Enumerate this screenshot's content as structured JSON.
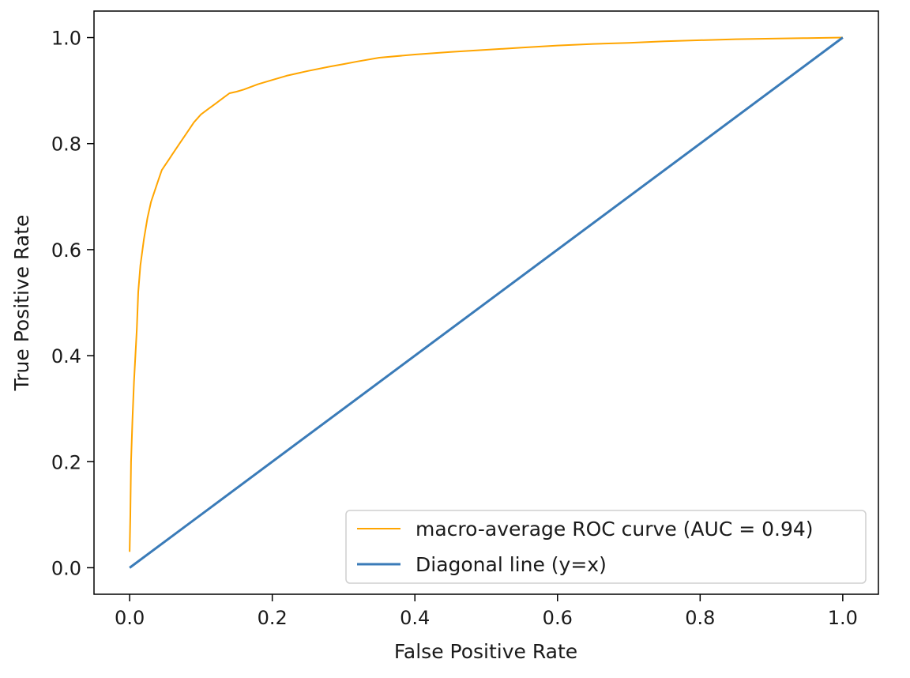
{
  "chart_data": {
    "type": "line",
    "title": "",
    "xlabel": "False Positive Rate",
    "ylabel": "True Positive Rate",
    "xlim": [
      -0.05,
      1.05
    ],
    "ylim": [
      -0.05,
      1.05
    ],
    "xticks": [
      "0.0",
      "0.2",
      "0.4",
      "0.6",
      "0.8",
      "1.0"
    ],
    "yticks": [
      "0.0",
      "0.2",
      "0.4",
      "0.6",
      "0.8",
      "1.0"
    ],
    "grid": false,
    "legend_position": "lower-right",
    "series": [
      {
        "name": "macro-average ROC curve (AUC = 0.94)",
        "color": "#ffa500",
        "x": [
          0.0,
          0.001,
          0.002,
          0.004,
          0.006,
          0.008,
          0.01,
          0.012,
          0.015,
          0.018,
          0.02,
          0.025,
          0.03,
          0.035,
          0.04,
          0.045,
          0.05,
          0.055,
          0.06,
          0.07,
          0.08,
          0.09,
          0.1,
          0.11,
          0.12,
          0.13,
          0.14,
          0.15,
          0.16,
          0.18,
          0.2,
          0.22,
          0.25,
          0.28,
          0.3,
          0.32,
          0.35,
          0.4,
          0.45,
          0.5,
          0.55,
          0.6,
          0.65,
          0.7,
          0.75,
          0.8,
          0.85,
          0.9,
          0.95,
          1.0
        ],
        "y": [
          0.03,
          0.1,
          0.2,
          0.28,
          0.35,
          0.4,
          0.45,
          0.52,
          0.57,
          0.6,
          0.62,
          0.66,
          0.69,
          0.71,
          0.73,
          0.75,
          0.76,
          0.77,
          0.78,
          0.8,
          0.82,
          0.84,
          0.855,
          0.865,
          0.875,
          0.885,
          0.895,
          0.898,
          0.902,
          0.912,
          0.92,
          0.928,
          0.937,
          0.945,
          0.95,
          0.955,
          0.962,
          0.968,
          0.973,
          0.977,
          0.981,
          0.985,
          0.988,
          0.99,
          0.993,
          0.995,
          0.997,
          0.998,
          0.999,
          1.0
        ]
      },
      {
        "name": "Diagonal line (y=x)",
        "color": "#3a7bb8",
        "x": [
          0.0,
          1.0
        ],
        "y": [
          0.0,
          1.0
        ]
      }
    ]
  }
}
